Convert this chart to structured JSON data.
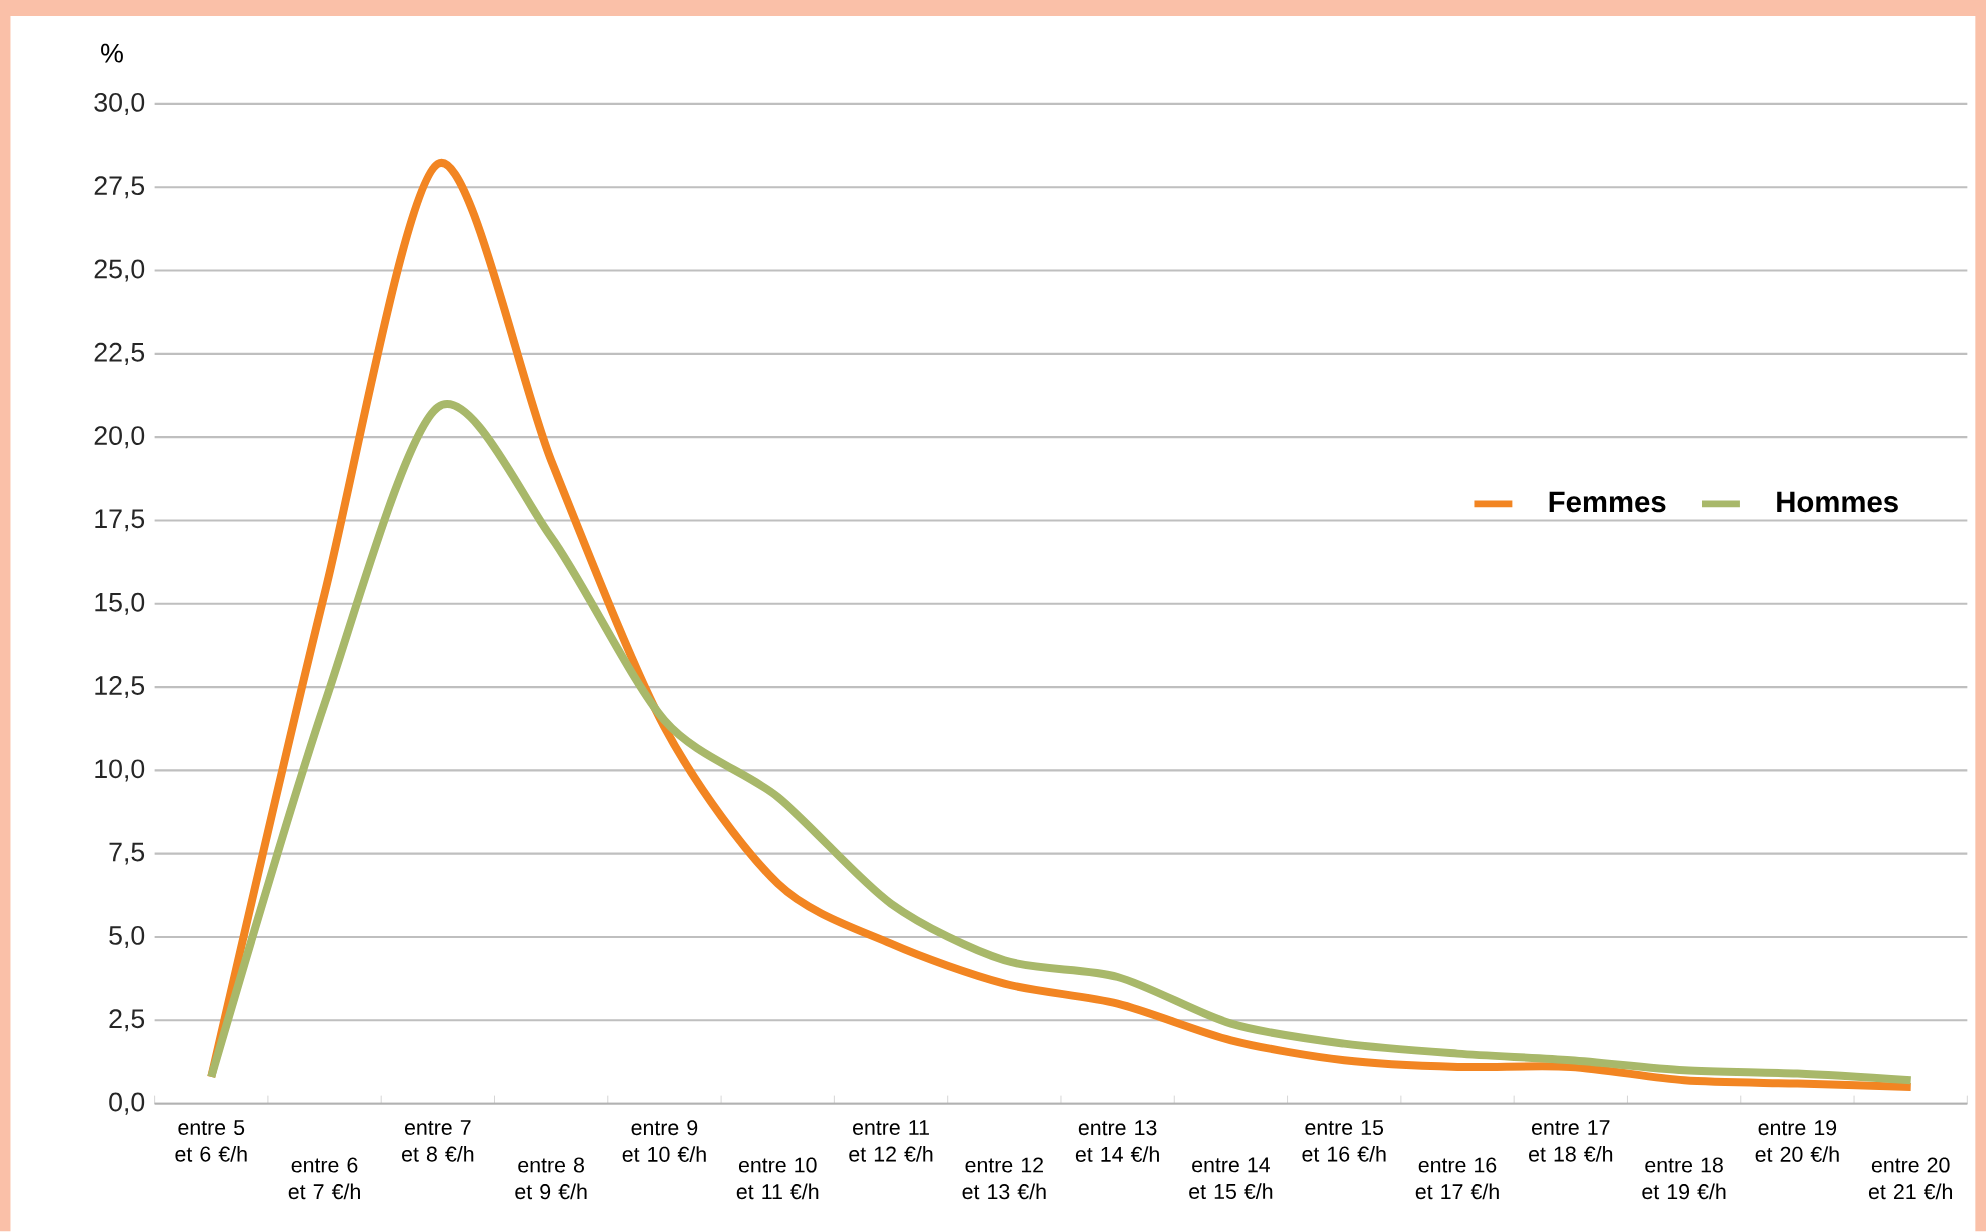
{
  "chart_data": {
    "type": "line",
    "ylabel": "%",
    "categories": [
      "entre 5 et 6 €/h",
      "entre 6 et 7 €/h",
      "entre 7 et 8 €/h",
      "entre 8 et 9 €/h",
      "entre 9 et 10 €/h",
      "entre 10 et 11 €/h",
      "entre 11 et 12 €/h",
      "entre 12 et 13 €/h",
      "entre 13 et 14 €/h",
      "entre 14 et 15 €/h",
      "entre 15 et 16 €/h",
      "entre 16 et 17 €/h",
      "entre 17 et 18 €/h",
      "entre 18 et 19 €/h",
      "entre 19 et 20 €/h",
      "entre 20 et 21 €/h"
    ],
    "series": [
      {
        "name": "Femmes",
        "color": "#f28522",
        "values": [
          0.8,
          15.3,
          28.2,
          19.3,
          11.3,
          6.6,
          4.8,
          3.6,
          3.0,
          1.9,
          1.3,
          1.1,
          1.1,
          0.7,
          0.6,
          0.5
        ]
      },
      {
        "name": "Hommes",
        "color": "#a8b86a",
        "values": [
          0.8,
          12.0,
          20.9,
          17.0,
          11.5,
          9.2,
          6.0,
          4.3,
          3.8,
          2.4,
          1.8,
          1.5,
          1.3,
          1.0,
          0.9,
          0.7
        ]
      }
    ],
    "ylim": [
      0,
      30
    ],
    "yticks": [
      {
        "value": 0,
        "label": "0,0"
      },
      {
        "value": 2.5,
        "label": "2,5"
      },
      {
        "value": 5,
        "label": "5,0"
      },
      {
        "value": 7.5,
        "label": "7,5"
      },
      {
        "value": 10,
        "label": "10,0"
      },
      {
        "value": 12.5,
        "label": "12,5"
      },
      {
        "value": 15,
        "label": "15,0"
      },
      {
        "value": 17.5,
        "label": "17,5"
      },
      {
        "value": 20,
        "label": "20,0"
      },
      {
        "value": 22.5,
        "label": "22,5"
      },
      {
        "value": 25,
        "label": "25,0"
      },
      {
        "value": 27.5,
        "label": "27,5"
      },
      {
        "value": 30,
        "label": "30,0"
      }
    ],
    "grid": "y",
    "legend": "right",
    "marker": "none",
    "line_style": "solid"
  }
}
